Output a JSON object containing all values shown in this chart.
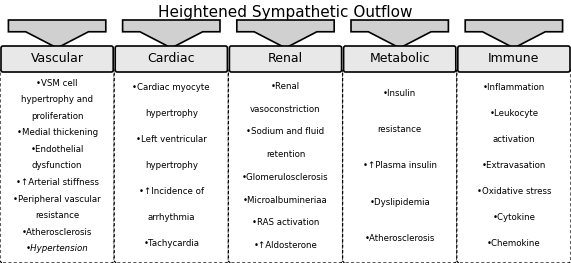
{
  "title": "Heightened Sympathetic Outflow",
  "categories": [
    "Vascular",
    "Cardiac",
    "Renal",
    "Metabolic",
    "Immune"
  ],
  "bullets": [
    "•VSM cell\nhypertrophy and\nproliferation\n•Medial thickening\n•Endothelial\ndysfunction\n•↑Arterial stiffness\n•Peripheral vascular\nresistance\n•Atherosclerosis\n•Hypertension",
    "•Cardiac myocyte\nhypertrophy\n•Left ventricular\nhypertrophy\n•↑Incidence of\narrhythmia\n•Tachycardia",
    "•Renal\nvasoconstriction\n•Sodium and fluid\nretention\n•Glomerulosclerosis\n•Microalbumineriaa\n•RAS activation\n•↑Aldosterone",
    "•Insulin\nresistance\n•↑Plasma insulin\n•Dyslipidemia\n•Atherosclerosis",
    "•Inflammation\n•Leukocyte\nactivation\n•Extravasation\n•Oxidative stress\n•Cytokine\n•Chemokine"
  ],
  "italic_last_line": [
    true,
    false,
    false,
    false,
    false
  ],
  "bg_color": "#ffffff",
  "header_fill": "#e8e8e8",
  "arrow_fill": "#d0d0d0",
  "text_color": "#000000",
  "border_color": "#000000",
  "title_fontsize": 11,
  "cat_fontsize": 9,
  "bullet_fontsize": 6.2,
  "fig_w": 5.71,
  "fig_h": 2.63,
  "dpi": 100
}
